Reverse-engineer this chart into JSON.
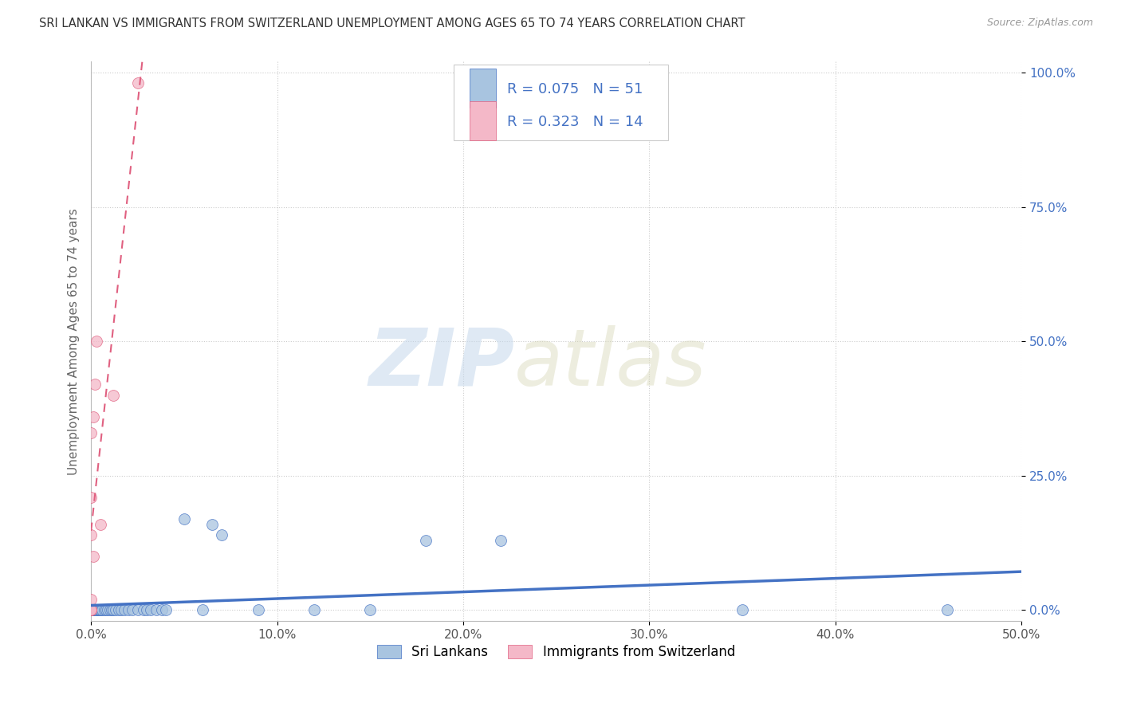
{
  "title": "SRI LANKAN VS IMMIGRANTS FROM SWITZERLAND UNEMPLOYMENT AMONG AGES 65 TO 74 YEARS CORRELATION CHART",
  "source": "Source: ZipAtlas.com",
  "xlim": [
    0,
    0.5
  ],
  "ylim": [
    -0.02,
    1.02
  ],
  "ylabel": "Unemployment Among Ages 65 to 74 years",
  "sri_lankans_x": [
    0.0,
    0.0,
    0.0,
    0.0,
    0.0,
    0.0,
    0.0,
    0.0,
    0.001,
    0.001,
    0.001,
    0.002,
    0.002,
    0.003,
    0.003,
    0.003,
    0.004,
    0.004,
    0.005,
    0.005,
    0.006,
    0.007,
    0.008,
    0.009,
    0.01,
    0.011,
    0.012,
    0.013,
    0.015,
    0.016,
    0.018,
    0.02,
    0.022,
    0.025,
    0.028,
    0.03,
    0.032,
    0.035,
    0.038,
    0.04,
    0.05,
    0.06,
    0.065,
    0.07,
    0.09,
    0.12,
    0.15,
    0.18,
    0.22,
    0.35,
    0.46
  ],
  "sri_lankans_y": [
    0.0,
    0.0,
    0.0,
    0.0,
    0.0,
    0.0,
    0.0,
    0.0,
    0.0,
    0.0,
    0.0,
    0.0,
    0.0,
    0.0,
    0.0,
    0.0,
    0.0,
    0.0,
    0.0,
    0.0,
    0.0,
    0.0,
    0.0,
    0.0,
    0.0,
    0.0,
    0.0,
    0.0,
    0.0,
    0.0,
    0.0,
    0.0,
    0.0,
    0.0,
    0.0,
    0.0,
    0.0,
    0.0,
    0.0,
    0.0,
    0.17,
    0.0,
    0.16,
    0.14,
    0.0,
    0.0,
    0.0,
    0.13,
    0.13,
    0.0,
    0.0
  ],
  "swiss_x": [
    0.0,
    0.0,
    0.0,
    0.0,
    0.0,
    0.0,
    0.0,
    0.001,
    0.001,
    0.002,
    0.003,
    0.005,
    0.012,
    0.025
  ],
  "swiss_y": [
    0.0,
    0.0,
    0.0,
    0.02,
    0.14,
    0.21,
    0.33,
    0.1,
    0.36,
    0.42,
    0.5,
    0.16,
    0.4,
    0.98
  ],
  "sri_lankans_R": 0.075,
  "sri_lankans_N": 51,
  "swiss_R": 0.323,
  "swiss_N": 14,
  "color_blue": "#a8c4e0",
  "color_pink": "#f4b8c8",
  "trend_blue": "#4472c4",
  "trend_pink": "#e06080",
  "legend_label_blue": "Sri Lankans",
  "legend_label_pink": "Immigrants from Switzerland",
  "background_color": "#ffffff",
  "grid_color": "#cccccc",
  "ytick_color": "#4472c4",
  "xtick_color": "#555555"
}
